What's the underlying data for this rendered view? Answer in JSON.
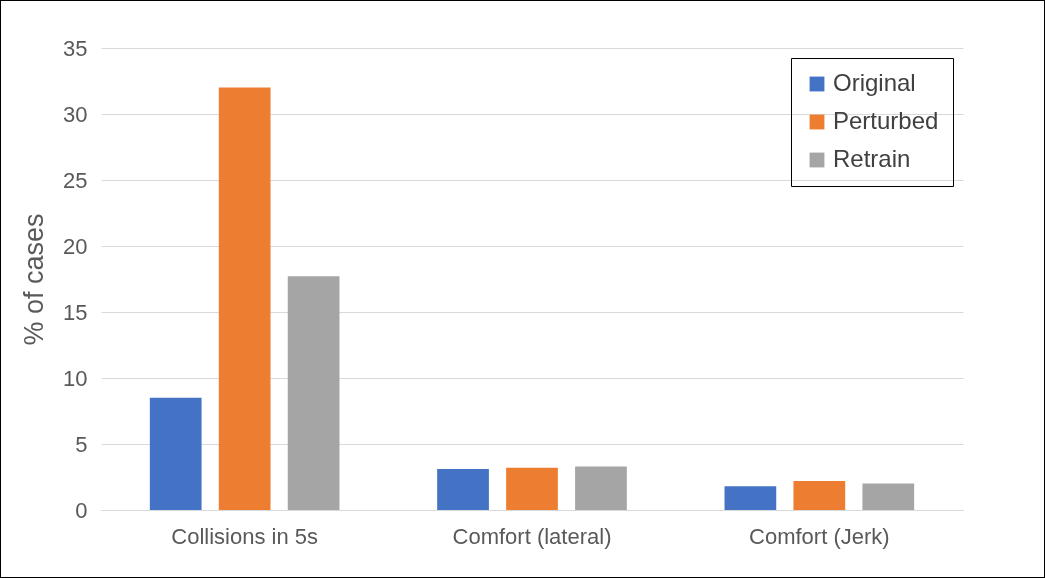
{
  "chart_data": {
    "type": "bar",
    "ylabel": "% of cases",
    "categories": [
      "Collisions in 5s",
      "Comfort (lateral)",
      "Comfort (Jerk)"
    ],
    "series": [
      {
        "name": "Original",
        "color": "#4472c4",
        "values": [
          8.5,
          3.1,
          1.8
        ]
      },
      {
        "name": "Perturbed",
        "color": "#ed7d31",
        "values": [
          32,
          3.2,
          2.2
        ]
      },
      {
        "name": "Retrain",
        "color": "#a5a5a5",
        "values": [
          17.7,
          3.3,
          2.0
        ]
      }
    ],
    "ylim": [
      0,
      35
    ],
    "yticks": [
      0,
      5,
      10,
      15,
      20,
      25,
      30,
      35
    ],
    "grid": "y",
    "legend": "top right"
  }
}
